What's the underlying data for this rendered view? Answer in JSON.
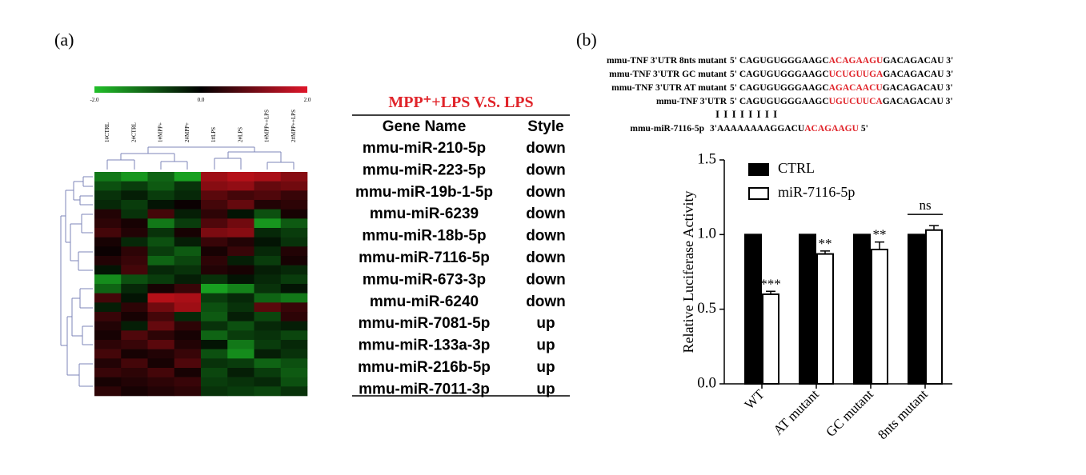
{
  "panel_a": {
    "label": "(a)",
    "heatmap": {
      "colorbar": [
        {
          "value": -2,
          "label": "-2.0"
        },
        {
          "value": 0,
          "label": "0.0"
        },
        {
          "value": 2,
          "label": "2.0"
        }
      ],
      "columns": [
        "1#CTRL",
        "2#CTRL",
        "1#MPP+",
        "2#MPP+",
        "1#LPS",
        "2#LPS",
        "1#MPP++LPS",
        "2#MPP++LPS"
      ],
      "rows": [
        [
          -1.2,
          -1.5,
          -1.0,
          -1.6,
          1.4,
          1.6,
          1.5,
          1.2
        ],
        [
          -0.8,
          -0.6,
          -0.9,
          -0.5,
          1.2,
          1.3,
          0.9,
          1.0
        ],
        [
          -0.5,
          -0.3,
          -0.6,
          -0.4,
          0.8,
          0.6,
          0.7,
          0.5
        ],
        [
          -0.4,
          -0.6,
          -0.2,
          0.1,
          0.6,
          0.9,
          0.3,
          0.4
        ],
        [
          0.3,
          -0.5,
          0.6,
          -0.3,
          0.4,
          -0.2,
          -0.8,
          0.2
        ],
        [
          0.4,
          0.2,
          -1.2,
          -0.6,
          0.7,
          1.0,
          -1.5,
          -0.9
        ],
        [
          0.6,
          0.3,
          -0.5,
          0.2,
          1.1,
          1.2,
          -0.4,
          -0.6
        ],
        [
          0.2,
          -0.4,
          -0.8,
          -0.3,
          0.5,
          0.3,
          -0.2,
          -0.5
        ],
        [
          0.1,
          0.4,
          -0.6,
          -0.9,
          0.2,
          0.5,
          -0.4,
          0.3
        ],
        [
          0.3,
          0.5,
          -1.0,
          -0.7,
          0.4,
          -0.3,
          -0.6,
          0.2
        ],
        [
          -0.2,
          0.6,
          -0.4,
          -0.5,
          0.3,
          0.2,
          -0.3,
          -0.4
        ],
        [
          -1.4,
          -0.8,
          -0.6,
          -0.3,
          -0.5,
          -0.2,
          -0.4,
          -0.6
        ],
        [
          -1.0,
          -0.4,
          0.2,
          0.5,
          -1.6,
          -1.3,
          -0.5,
          -0.2
        ],
        [
          0.6,
          -0.2,
          1.6,
          1.5,
          -0.6,
          -0.4,
          -1.0,
          -1.2
        ],
        [
          -0.3,
          0.4,
          1.0,
          1.4,
          -0.8,
          -0.5,
          0.8,
          0.5
        ],
        [
          0.5,
          0.2,
          0.6,
          -0.4,
          -0.9,
          -0.3,
          -0.7,
          0.4
        ],
        [
          0.3,
          -0.3,
          0.9,
          0.4,
          -0.5,
          -0.8,
          -0.4,
          -0.3
        ],
        [
          0.2,
          0.7,
          0.4,
          0.2,
          -1.0,
          -0.6,
          -0.5,
          -0.7
        ],
        [
          0.4,
          0.5,
          0.8,
          0.3,
          -0.2,
          -1.2,
          -0.6,
          -0.4
        ],
        [
          0.6,
          0.2,
          0.3,
          0.5,
          -0.8,
          -1.4,
          -0.3,
          -0.5
        ],
        [
          0.3,
          0.6,
          0.2,
          0.7,
          -0.5,
          -0.6,
          -1.0,
          -0.8
        ],
        [
          0.5,
          0.4,
          0.6,
          0.2,
          -0.7,
          -0.3,
          -0.6,
          -0.9
        ],
        [
          0.2,
          0.3,
          0.4,
          0.5,
          -0.6,
          -0.5,
          -0.4,
          -0.8
        ],
        [
          0.4,
          0.2,
          0.3,
          0.4,
          -0.5,
          -0.6,
          -0.7,
          -0.5
        ]
      ]
    },
    "table": {
      "title": "MPP⁺+LPS V.S. LPS",
      "header": [
        "Gene Name",
        "Style"
      ],
      "rows": [
        [
          "mmu-miR-210-5p",
          "down"
        ],
        [
          "mmu-miR-223-5p",
          "down"
        ],
        [
          "mmu-miR-19b-1-5p",
          "down"
        ],
        [
          "mmu-miR-6239",
          "down"
        ],
        [
          "mmu-miR-18b-5p",
          "down"
        ],
        [
          "mmu-miR-7116-5p",
          "down"
        ],
        [
          "mmu-miR-673-3p",
          "down"
        ],
        [
          "mmu-miR-6240",
          "down"
        ],
        [
          "mmu-miR-7081-5p",
          "up"
        ],
        [
          "mmu-miR-133a-3p",
          "up"
        ],
        [
          "mmu-miR-216b-5p",
          "up"
        ],
        [
          "mmu-miR-7011-3p",
          "up"
        ]
      ]
    }
  },
  "panel_b": {
    "label": "(b)",
    "sequences": [
      {
        "name": "mmu-TNF 3'UTR 8nts mutant",
        "pre": "5' CAGUGUGGGAAGC",
        "site": "ACAGAAGU",
        "post": "GACAGACAU 3'"
      },
      {
        "name": "mmu-TNF 3'UTR GC mutant",
        "pre": "5' CAGUGUGGGAAGC",
        "site": "UCUGUUGA",
        "post": "GACAGACAU 3'"
      },
      {
        "name": "mmu-TNF 3'UTR AT mutant",
        "pre": "5' CAGUGUGGGAAGC",
        "site": "AGACAACU",
        "post": "GACAGACAU 3'"
      },
      {
        "name": "mmu-TNF 3'UTR",
        "pre": "5' CAGUGUGGGAAGC",
        "site": "UGUCUUCA",
        "post": "GACAGACAU 3'"
      }
    ],
    "pairing": "I I I I I I I I",
    "mirna": {
      "name": "mmu-miR-7116-5p",
      "pre": "3'AAAAAAAAGGACU",
      "site": "ACAGAAGU",
      "post": " 5'"
    }
  },
  "chart_data": {
    "type": "bar",
    "y_label": "Relative Luciferase Activity",
    "categories": [
      "WT",
      "AT mutant",
      "GC mutant",
      "8nts mutant"
    ],
    "series": [
      {
        "name": "CTRL",
        "color": "#000000",
        "values": [
          1,
          1,
          1,
          1
        ],
        "errors": [
          0,
          0,
          0,
          0
        ]
      },
      {
        "name": "miR-7116-5p",
        "color": "#ffffff",
        "values": [
          0.6,
          0.87,
          0.9,
          1.03
        ],
        "errors": [
          0.02,
          0.02,
          0.05,
          0.03
        ]
      }
    ],
    "annotations": [
      {
        "text": "***",
        "category": 0
      },
      {
        "text": "**",
        "category": 1
      },
      {
        "text": "**",
        "category": 2
      },
      {
        "text": "ns",
        "category": 3,
        "bracket": true
      }
    ],
    "ylim": [
      0,
      1.5
    ],
    "yticks": [
      {
        "value": 0,
        "label": "0.0"
      },
      {
        "value": 0.5,
        "label": "0.5"
      },
      {
        "value": 1,
        "label": "1.0"
      },
      {
        "value": 1.5,
        "label": "1.5"
      }
    ],
    "legend": "top-left"
  }
}
